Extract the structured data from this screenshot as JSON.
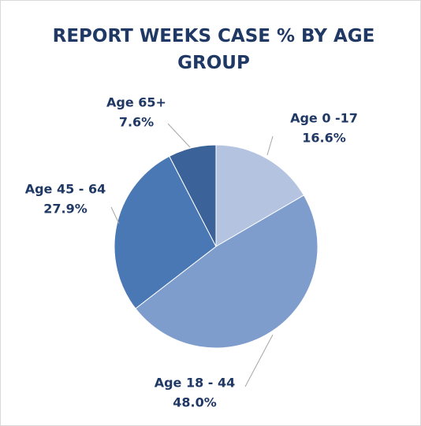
{
  "chart_data": {
    "type": "pie",
    "title": "REPORT WEEKS CASE % BY AGE GROUP",
    "categories": [
      "Age 0 -17",
      "Age 18 - 44",
      "Age 45 - 64",
      "Age 65+"
    ],
    "values": [
      16.6,
      48.0,
      27.9,
      7.6
    ],
    "value_labels": [
      "16.6%",
      "48.0%",
      "27.9%",
      "7.6%"
    ],
    "colors": [
      "#b4c3e0",
      "#7f9dcc",
      "#4a78b4",
      "#3b6399"
    ]
  }
}
